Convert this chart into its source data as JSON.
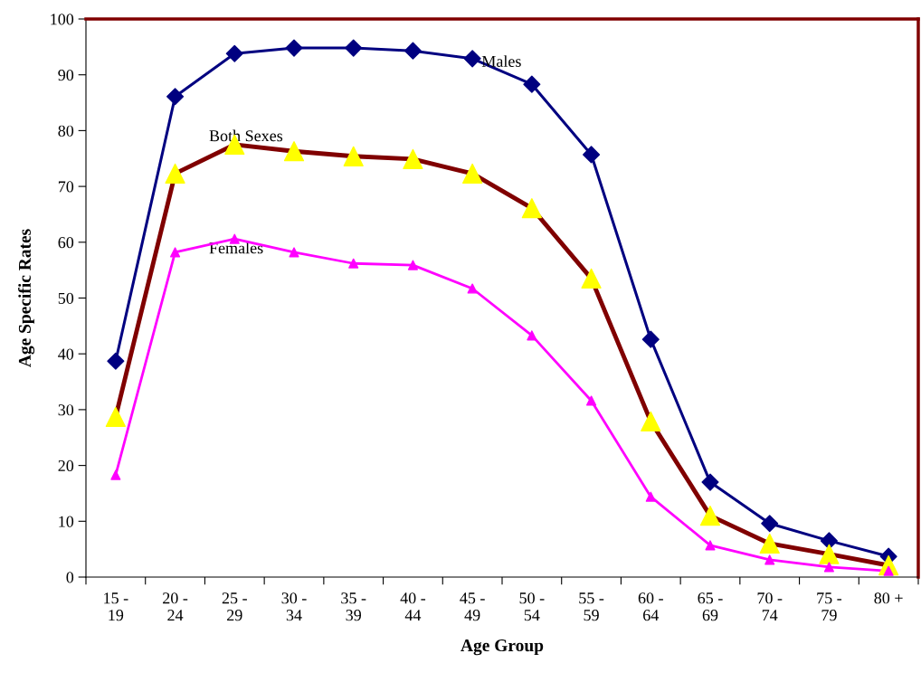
{
  "chart_data": {
    "type": "line",
    "xlabel": "Age Group",
    "ylabel": "Age Specific Rates",
    "categories": [
      "15 -\n19",
      "20 -\n24",
      "25 -\n29",
      "30 -\n34",
      "35 -\n39",
      "40 -\n44",
      "45 -\n49",
      "50 -\n54",
      "55 -\n59",
      "60 -\n64",
      "65 -\n69",
      "70 -\n74",
      "75 -\n79",
      "80 +"
    ],
    "series": [
      {
        "name": "Males",
        "color": "#000080",
        "marker": "diamond",
        "values": [
          38.7,
          86.1,
          93.8,
          94.8,
          94.8,
          94.3,
          92.9,
          88.3,
          75.7,
          42.6,
          17.0,
          9.6,
          6.5,
          3.7
        ]
      },
      {
        "name": "Both Sexes",
        "color": "#800000",
        "marker": "triangle",
        "colors": [
          "#ffff00",
          "#ffff00",
          "#ffff00",
          "#ffff00",
          "#ffff00",
          "#ffff00",
          "#ffff00",
          "#ffff00",
          "#ffff00",
          "#ffff00",
          "#ffff00",
          "#ffff00",
          "#ffff00",
          "#ffff00"
        ],
        "values": [
          28.7,
          72.3,
          77.5,
          76.3,
          75.4,
          74.9,
          72.3,
          66.1,
          53.5,
          27.9,
          11.0,
          6.0,
          4.1,
          2.1
        ]
      },
      {
        "name": "Females",
        "color": "#ff00ff",
        "marker": "triangle",
        "values": [
          18.3,
          58.2,
          60.6,
          58.2,
          56.2,
          55.9,
          51.7,
          43.3,
          31.6,
          14.4,
          5.7,
          3.1,
          1.8,
          1.1
        ]
      }
    ],
    "ylim": [
      0,
      100
    ],
    "yticks": [
      0,
      10,
      20,
      30,
      40,
      50,
      60,
      70,
      80,
      90,
      100
    ],
    "grid": false,
    "legend": false
  }
}
